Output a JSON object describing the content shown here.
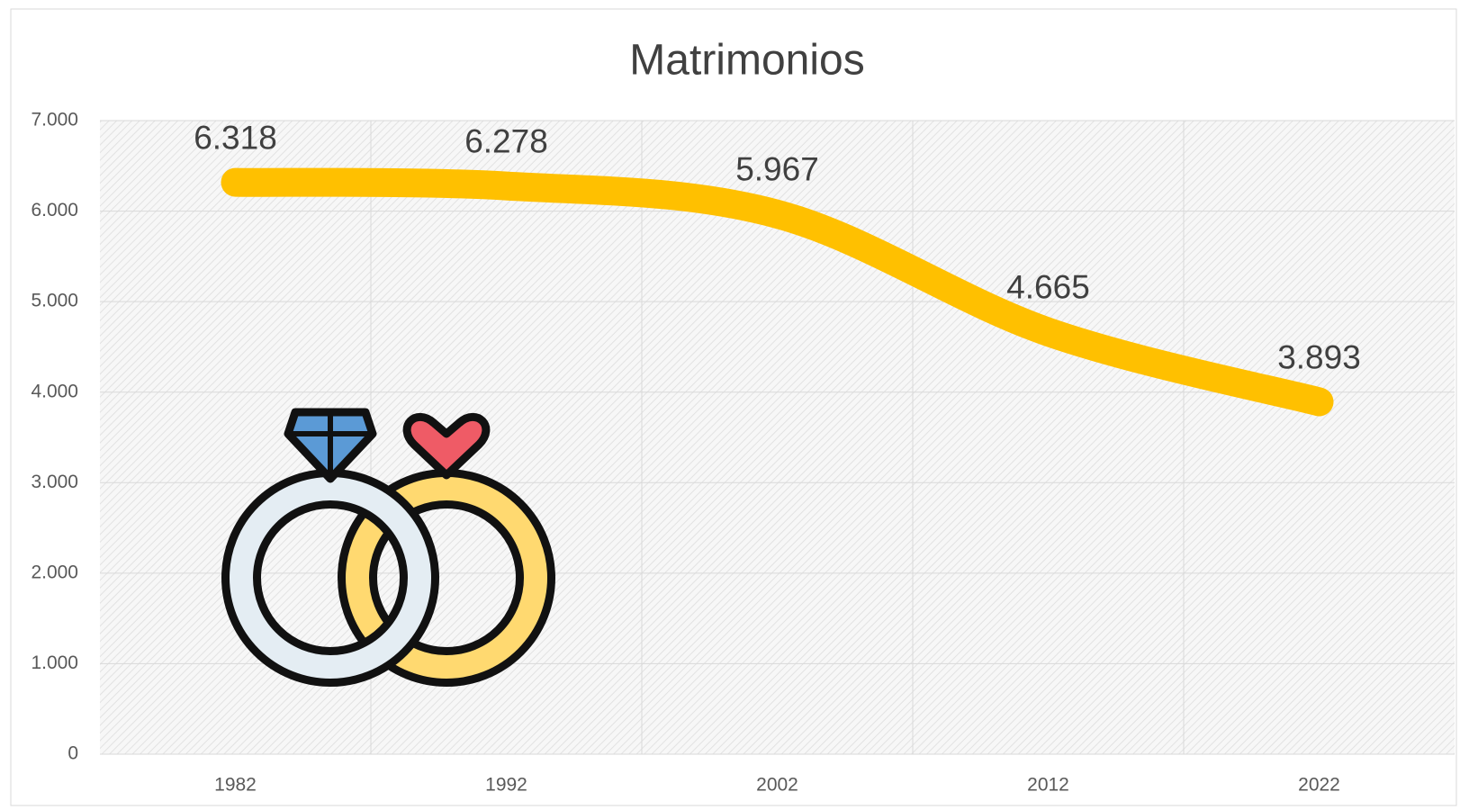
{
  "chart_data": {
    "type": "line",
    "title": "Matrimonios",
    "categories": [
      "1982",
      "1992",
      "2002",
      "2012",
      "2022"
    ],
    "series": [
      {
        "name": "Matrimonios",
        "color": "#FFC000",
        "values": [
          6318,
          6278,
          5967,
          4665,
          3893
        ],
        "value_labels": [
          "6.318",
          "6.278",
          "5.967",
          "4.665",
          "3.893"
        ]
      }
    ],
    "ylim": [
      0,
      7000
    ],
    "yticks": [
      0,
      {
        "value": 1000,
        "label": "1.000"
      },
      {
        "value": 2000,
        "label": "2.000"
      },
      {
        "value": 3000,
        "label": "3.000"
      },
      {
        "value": 4000,
        "label": "4.000"
      },
      {
        "value": 5000,
        "label": "5.000"
      },
      {
        "value": 6000,
        "label": "6.000"
      },
      {
        "value": 7000,
        "label": "7.000"
      }
    ],
    "grid": true,
    "smooth": true
  }
}
